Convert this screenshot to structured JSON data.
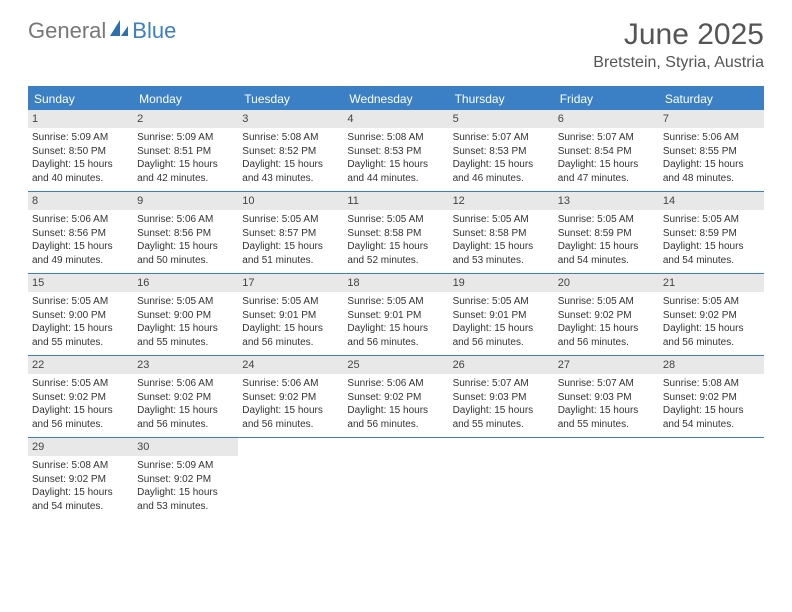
{
  "brand": {
    "part1": "General",
    "part2": "Blue"
  },
  "title": "June 2025",
  "location": "Bretstein, Styria, Austria",
  "colors": {
    "header_bar": "#3b7fc4",
    "daynum_bg": "#e8e8e8",
    "text": "#333333",
    "title_text": "#555555",
    "logo_gray": "#777777",
    "logo_blue": "#3b7fc4",
    "background": "#ffffff"
  },
  "dow": [
    "Sunday",
    "Monday",
    "Tuesday",
    "Wednesday",
    "Thursday",
    "Friday",
    "Saturday"
  ],
  "weeks": [
    [
      {
        "n": "1",
        "sr": "5:09 AM",
        "ss": "8:50 PM",
        "dh": "15",
        "dm": "40"
      },
      {
        "n": "2",
        "sr": "5:09 AM",
        "ss": "8:51 PM",
        "dh": "15",
        "dm": "42"
      },
      {
        "n": "3",
        "sr": "5:08 AM",
        "ss": "8:52 PM",
        "dh": "15",
        "dm": "43"
      },
      {
        "n": "4",
        "sr": "5:08 AM",
        "ss": "8:53 PM",
        "dh": "15",
        "dm": "44"
      },
      {
        "n": "5",
        "sr": "5:07 AM",
        "ss": "8:53 PM",
        "dh": "15",
        "dm": "46"
      },
      {
        "n": "6",
        "sr": "5:07 AM",
        "ss": "8:54 PM",
        "dh": "15",
        "dm": "47"
      },
      {
        "n": "7",
        "sr": "5:06 AM",
        "ss": "8:55 PM",
        "dh": "15",
        "dm": "48"
      }
    ],
    [
      {
        "n": "8",
        "sr": "5:06 AM",
        "ss": "8:56 PM",
        "dh": "15",
        "dm": "49"
      },
      {
        "n": "9",
        "sr": "5:06 AM",
        "ss": "8:56 PM",
        "dh": "15",
        "dm": "50"
      },
      {
        "n": "10",
        "sr": "5:05 AM",
        "ss": "8:57 PM",
        "dh": "15",
        "dm": "51"
      },
      {
        "n": "11",
        "sr": "5:05 AM",
        "ss": "8:58 PM",
        "dh": "15",
        "dm": "52"
      },
      {
        "n": "12",
        "sr": "5:05 AM",
        "ss": "8:58 PM",
        "dh": "15",
        "dm": "53"
      },
      {
        "n": "13",
        "sr": "5:05 AM",
        "ss": "8:59 PM",
        "dh": "15",
        "dm": "54"
      },
      {
        "n": "14",
        "sr": "5:05 AM",
        "ss": "8:59 PM",
        "dh": "15",
        "dm": "54"
      }
    ],
    [
      {
        "n": "15",
        "sr": "5:05 AM",
        "ss": "9:00 PM",
        "dh": "15",
        "dm": "55"
      },
      {
        "n": "16",
        "sr": "5:05 AM",
        "ss": "9:00 PM",
        "dh": "15",
        "dm": "55"
      },
      {
        "n": "17",
        "sr": "5:05 AM",
        "ss": "9:01 PM",
        "dh": "15",
        "dm": "56"
      },
      {
        "n": "18",
        "sr": "5:05 AM",
        "ss": "9:01 PM",
        "dh": "15",
        "dm": "56"
      },
      {
        "n": "19",
        "sr": "5:05 AM",
        "ss": "9:01 PM",
        "dh": "15",
        "dm": "56"
      },
      {
        "n": "20",
        "sr": "5:05 AM",
        "ss": "9:02 PM",
        "dh": "15",
        "dm": "56"
      },
      {
        "n": "21",
        "sr": "5:05 AM",
        "ss": "9:02 PM",
        "dh": "15",
        "dm": "56"
      }
    ],
    [
      {
        "n": "22",
        "sr": "5:05 AM",
        "ss": "9:02 PM",
        "dh": "15",
        "dm": "56"
      },
      {
        "n": "23",
        "sr": "5:06 AM",
        "ss": "9:02 PM",
        "dh": "15",
        "dm": "56"
      },
      {
        "n": "24",
        "sr": "5:06 AM",
        "ss": "9:02 PM",
        "dh": "15",
        "dm": "56"
      },
      {
        "n": "25",
        "sr": "5:06 AM",
        "ss": "9:02 PM",
        "dh": "15",
        "dm": "56"
      },
      {
        "n": "26",
        "sr": "5:07 AM",
        "ss": "9:03 PM",
        "dh": "15",
        "dm": "55"
      },
      {
        "n": "27",
        "sr": "5:07 AM",
        "ss": "9:03 PM",
        "dh": "15",
        "dm": "55"
      },
      {
        "n": "28",
        "sr": "5:08 AM",
        "ss": "9:02 PM",
        "dh": "15",
        "dm": "54"
      }
    ],
    [
      {
        "n": "29",
        "sr": "5:08 AM",
        "ss": "9:02 PM",
        "dh": "15",
        "dm": "54"
      },
      {
        "n": "30",
        "sr": "5:09 AM",
        "ss": "9:02 PM",
        "dh": "15",
        "dm": "53"
      },
      null,
      null,
      null,
      null,
      null
    ]
  ],
  "labels": {
    "sunrise": "Sunrise: ",
    "sunset": "Sunset: ",
    "daylight_prefix": "Daylight: ",
    "hours_word": " hours",
    "and_word": "and ",
    "minutes_word": " minutes."
  }
}
